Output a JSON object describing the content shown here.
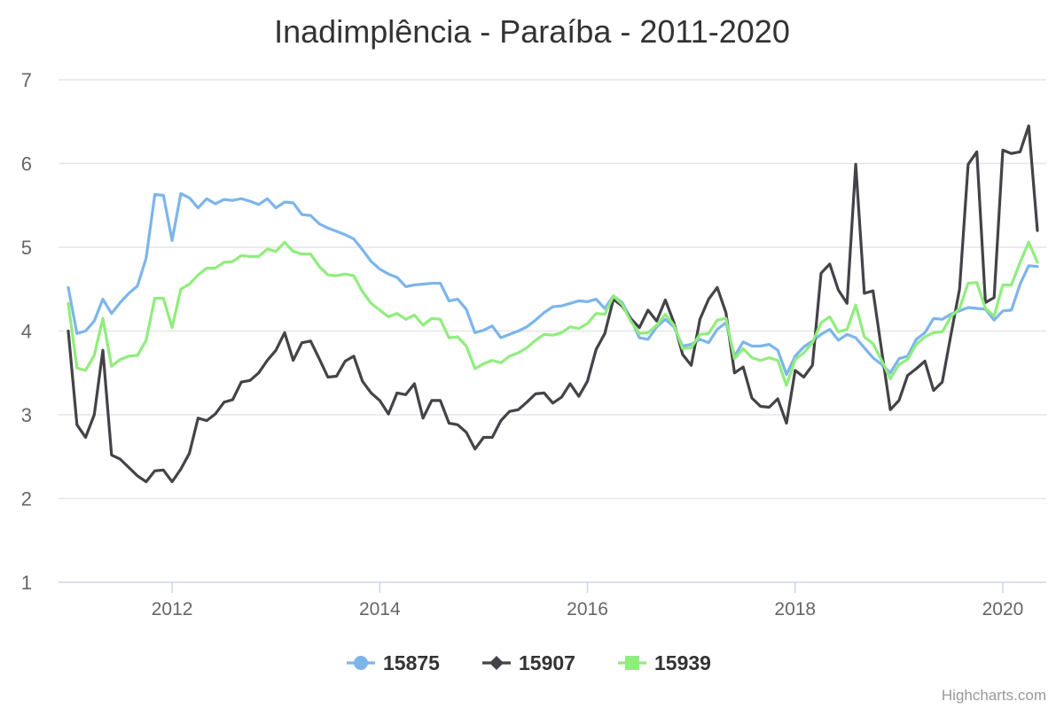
{
  "chart_data": {
    "type": "line",
    "title": "Inadimplência - Paraíba - 2011-2020",
    "credits": "Highcharts.com",
    "xlabel": "",
    "ylabel": "",
    "x_start": "2011-01",
    "x_end": "2020-05",
    "x_ticks": [
      "2012",
      "2014",
      "2016",
      "2018",
      "2020"
    ],
    "y_ticks": [
      "1",
      "2",
      "3",
      "4",
      "5",
      "6",
      "7"
    ],
    "ylim": [
      1,
      7
    ],
    "grid": true,
    "legend_position": "bottom-center",
    "series": [
      {
        "name": "15875",
        "color": "#7cb5ec",
        "marker": "circle",
        "values": [
          4.52,
          3.97,
          4.0,
          4.12,
          4.38,
          4.21,
          4.34,
          4.45,
          4.54,
          4.87,
          5.63,
          5.62,
          5.08,
          5.64,
          5.59,
          5.47,
          5.58,
          5.52,
          5.57,
          5.56,
          5.58,
          5.55,
          5.51,
          5.58,
          5.47,
          5.54,
          5.53,
          5.39,
          5.38,
          5.28,
          5.23,
          5.19,
          5.15,
          5.1,
          4.97,
          4.83,
          4.74,
          4.68,
          4.64,
          4.53,
          4.55,
          4.56,
          4.57,
          4.57,
          4.36,
          4.38,
          4.26,
          3.98,
          4.01,
          4.06,
          3.92,
          3.96,
          4.0,
          4.05,
          4.13,
          4.22,
          4.29,
          4.3,
          4.33,
          4.36,
          4.35,
          4.38,
          4.27,
          4.42,
          4.34,
          4.15,
          3.92,
          3.9,
          4.05,
          4.14,
          4.05,
          3.82,
          3.84,
          3.9,
          3.86,
          4.02,
          4.1,
          3.7,
          3.87,
          3.82,
          3.82,
          3.84,
          3.77,
          3.48,
          3.7,
          3.81,
          3.88,
          3.96,
          4.02,
          3.89,
          3.96,
          3.92,
          3.8,
          3.68,
          3.6,
          3.5,
          3.67,
          3.7,
          3.9,
          3.98,
          4.15,
          4.14,
          4.2,
          4.24,
          4.28,
          4.27,
          4.26,
          4.13,
          4.24,
          4.25,
          4.56,
          4.78,
          4.77
        ]
      },
      {
        "name": "15907",
        "color": "#434348",
        "marker": "diamond",
        "values": [
          4.0,
          2.88,
          2.73,
          3.0,
          3.77,
          2.52,
          2.47,
          2.37,
          2.27,
          2.2,
          2.33,
          2.34,
          2.2,
          2.35,
          2.54,
          2.96,
          2.93,
          3.01,
          3.15,
          3.18,
          3.39,
          3.41,
          3.5,
          3.65,
          3.77,
          3.98,
          3.65,
          3.86,
          3.88,
          3.67,
          3.45,
          3.46,
          3.64,
          3.7,
          3.4,
          3.26,
          3.17,
          3.01,
          3.26,
          3.24,
          3.37,
          2.96,
          3.17,
          3.17,
          2.9,
          2.88,
          2.79,
          2.59,
          2.73,
          2.73,
          2.93,
          3.04,
          3.06,
          3.15,
          3.25,
          3.26,
          3.14,
          3.21,
          3.37,
          3.22,
          3.4,
          3.78,
          3.97,
          4.38,
          4.3,
          4.15,
          4.04,
          4.25,
          4.12,
          4.37,
          4.1,
          3.72,
          3.59,
          4.14,
          4.38,
          4.52,
          4.22,
          3.5,
          3.57,
          3.2,
          3.1,
          3.09,
          3.19,
          2.9,
          3.53,
          3.45,
          3.59,
          4.69,
          4.8,
          4.49,
          4.33,
          5.99,
          4.45,
          4.48,
          3.77,
          3.06,
          3.17,
          3.47,
          3.55,
          3.64,
          3.29,
          3.39,
          3.95,
          4.5,
          5.99,
          6.14,
          4.34,
          4.4,
          6.16,
          6.12,
          6.14,
          6.45,
          5.2
        ]
      },
      {
        "name": "15939",
        "color": "#90ed7d",
        "marker": "square",
        "values": [
          4.33,
          3.56,
          3.53,
          3.71,
          4.15,
          3.58,
          3.66,
          3.7,
          3.71,
          3.89,
          4.39,
          4.39,
          4.04,
          4.5,
          4.56,
          4.67,
          4.75,
          4.75,
          4.82,
          4.83,
          4.9,
          4.89,
          4.89,
          4.98,
          4.95,
          5.06,
          4.95,
          4.92,
          4.92,
          4.77,
          4.67,
          4.66,
          4.68,
          4.66,
          4.47,
          4.33,
          4.25,
          4.17,
          4.21,
          4.14,
          4.19,
          4.07,
          4.15,
          4.14,
          3.92,
          3.93,
          3.82,
          3.55,
          3.61,
          3.65,
          3.62,
          3.7,
          3.74,
          3.8,
          3.89,
          3.96,
          3.95,
          3.98,
          4.05,
          4.03,
          4.09,
          4.21,
          4.2,
          4.42,
          4.32,
          4.12,
          3.97,
          3.98,
          4.07,
          4.2,
          4.07,
          3.79,
          3.8,
          3.96,
          3.97,
          4.13,
          4.15,
          3.67,
          3.79,
          3.68,
          3.65,
          3.68,
          3.65,
          3.35,
          3.66,
          3.74,
          3.86,
          4.1,
          4.17,
          3.99,
          4.02,
          4.31,
          3.93,
          3.85,
          3.65,
          3.43,
          3.6,
          3.66,
          3.84,
          3.93,
          3.98,
          3.99,
          4.17,
          4.27,
          4.57,
          4.58,
          4.27,
          4.18,
          4.55,
          4.55,
          4.82,
          5.06,
          4.82
        ]
      }
    ]
  }
}
